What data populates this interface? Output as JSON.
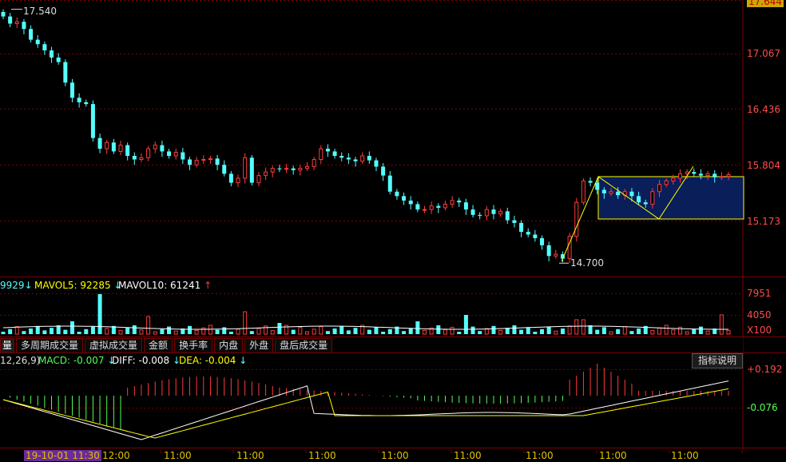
{
  "price_axis": [
    "17.644",
    "17.067",
    "16.436",
    "15.804",
    "15.173"
  ],
  "high_label": "17.540",
  "low_label": "14.700",
  "volume_bar": {
    "prefix": "9929",
    "mavol5_label": "MAVOL5: 92285",
    "mavol10_label": "MAVOL10: 61241",
    "axis": [
      "7951",
      "4050",
      "X100"
    ]
  },
  "tabs": [
    "量",
    "多周期成交量",
    "虚拟成交量",
    "金额",
    "换手率",
    "内盘",
    "外盘",
    "盘后成交量"
  ],
  "macd_bar": {
    "params": "12,26,9)",
    "macd_label": "MACD: -0.007",
    "diff_label": "DIFF: -0.008",
    "dea_label": "DEA: -0.004",
    "indicator_btn": "指标说明",
    "axis": [
      "+0.192",
      "-0.076"
    ]
  },
  "time_axis": {
    "start": "19-10-01 11:30",
    "labels": [
      "12:00",
      "11:00",
      "11:00",
      "11:00",
      "11:00",
      "11:00",
      "11:00",
      "11:00",
      "11:00",
      "11:00"
    ]
  },
  "colors": {
    "up": "#ff3b3b",
    "down": "#54ffff",
    "ma5": "#ffffff",
    "ma10": "#ffff00",
    "grid": "#7a0000",
    "box": "#0a1e5a"
  },
  "chart_data": {
    "type": "candlestick",
    "price_ylim": [
      14.55,
      17.644
    ],
    "high": 17.54,
    "low": 14.7,
    "close": [
      17.46,
      17.38,
      17.4,
      17.32,
      17.2,
      17.15,
      17.08,
      17.0,
      16.95,
      16.72,
      16.55,
      16.5,
      16.48,
      16.1,
      15.98,
      16.05,
      15.95,
      16.02,
      15.9,
      15.86,
      15.88,
      15.98,
      16.02,
      15.95,
      15.9,
      15.94,
      15.86,
      15.8,
      15.85,
      15.86,
      15.87,
      15.8,
      15.7,
      15.6,
      15.65,
      15.88,
      15.6,
      15.68,
      15.72,
      15.76,
      15.75,
      15.76,
      15.74,
      15.76,
      15.78,
      15.86,
      15.98,
      15.95,
      15.9,
      15.88,
      15.86,
      15.84,
      15.9,
      15.85,
      15.78,
      15.68,
      15.5,
      15.45,
      15.4,
      15.36,
      15.3,
      15.3,
      15.34,
      15.32,
      15.36,
      15.4,
      15.38,
      15.3,
      15.24,
      15.23,
      15.3,
      15.25,
      15.28,
      15.18,
      15.15,
      15.05,
      15.02,
      14.98,
      14.9,
      14.78,
      14.8,
      14.75,
      15.0,
      15.38,
      15.62,
      15.6,
      15.52,
      15.48,
      15.5,
      15.46,
      15.5,
      15.45,
      15.38,
      15.36,
      15.5,
      15.58,
      15.62,
      15.65,
      15.7,
      15.72,
      15.7,
      15.68,
      15.7,
      15.66,
      15.67,
      15.69
    ]
  }
}
